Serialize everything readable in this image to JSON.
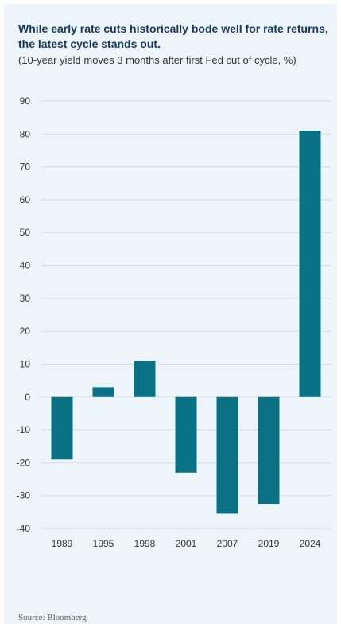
{
  "title": "While early rate cuts historically bode well for rate returns, the latest cycle stands out.",
  "subtitle": "(10-year yield moves 3 months after first Fed cut of cycle, %)",
  "source": "Source: Bloomberg",
  "colors": {
    "bar": "#0b7285",
    "grid": "#d3dde5",
    "panel": "#eef5fa"
  },
  "chart_data": {
    "type": "bar",
    "categories": [
      "1989",
      "1995",
      "1998",
      "2001",
      "2007",
      "2019",
      "2024"
    ],
    "values": [
      -19,
      3,
      11,
      -23,
      -35.5,
      -32.5,
      81
    ],
    "ylim": [
      -40,
      90
    ],
    "yticks": [
      90,
      80,
      70,
      60,
      50,
      40,
      30,
      20,
      10,
      0,
      -10,
      -20,
      -30,
      -40
    ],
    "grid": true,
    "xlabel": "",
    "ylabel": ""
  }
}
